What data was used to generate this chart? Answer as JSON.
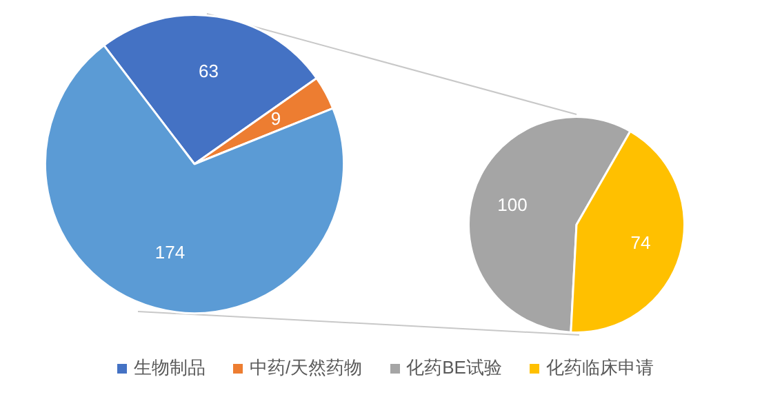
{
  "chart_data": [
    {
      "type": "pie",
      "categories": [
        "生物制品",
        "中药/天然药物",
        null
      ],
      "values": [
        63,
        9,
        174
      ],
      "colors": [
        "#4472c4",
        "#ed7d31",
        "#5b9bd5"
      ],
      "data_labels": true,
      "legend": "bottom"
    },
    {
      "type": "pie",
      "categories": [
        "化药BE试验",
        "化药临床申请"
      ],
      "values": [
        100,
        74
      ],
      "colors": [
        "#a5a5a5",
        "#ffc000"
      ],
      "data_labels": true,
      "legend": "bottom"
    }
  ]
}
